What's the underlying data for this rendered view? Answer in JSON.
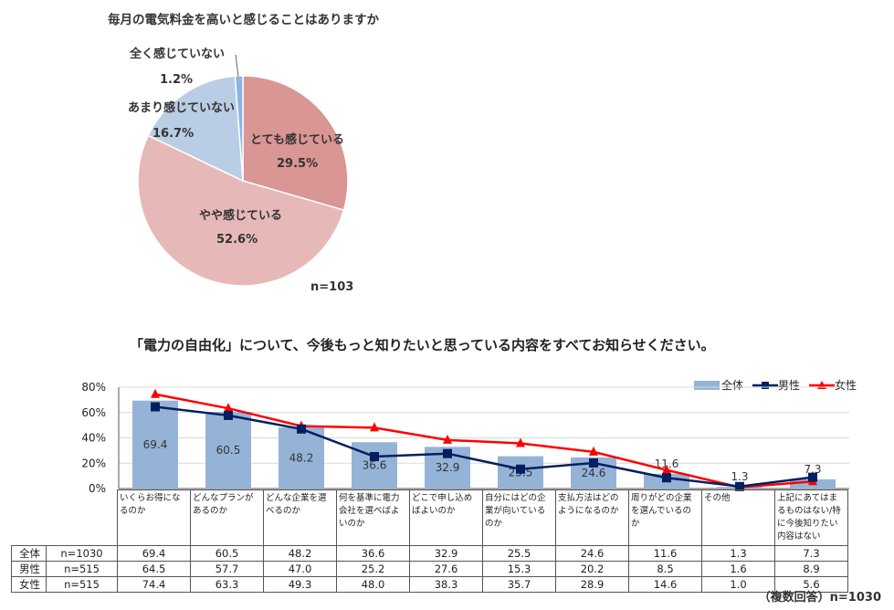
{
  "pie": {
    "title": "毎月の電気料金を高いと感じることはありますか",
    "n_label": "n=103",
    "slices": [
      {
        "label": "とても感じている",
        "value": 29.5,
        "value_label": "29.5%",
        "color": "#d99694"
      },
      {
        "label": "やや感じている",
        "value": 52.6,
        "value_label": "52.6%",
        "color": "#e6b9b8"
      },
      {
        "label": "あまり感じていない",
        "value": 16.7,
        "value_label": "16.7%",
        "color": "#b9cde5"
      },
      {
        "label": "全く感じていない",
        "value": 1.2,
        "value_label": "1.2%",
        "color": "#8eb4e3"
      }
    ]
  },
  "combo": {
    "title": "「電力の自由化」について、今後もっと知りたいと思っている内容をすべてお知らせください。",
    "footnote": "（複数回答）n=1030",
    "legend": [
      "全体",
      "男性",
      "女性"
    ],
    "y_ticks": [
      "80%",
      "60%",
      "40%",
      "20%",
      "0%"
    ],
    "row_labels": [
      {
        "name": "全体",
        "n": "n=1030"
      },
      {
        "name": "男性",
        "n": "n=515"
      },
      {
        "name": "女性",
        "n": "n=515"
      }
    ],
    "categories": [
      "いくらお得になるのか",
      "どんなプランがあるのか",
      "どんな企業を選べるのか",
      "何を基準に電力会社を選べばよいのか",
      "どこで申し込めばよいのか",
      "自分にはどの企業が向いているのか",
      "支払方法はどのようになるのか",
      "周りがどの企業を選んでいるのか",
      "その他",
      "上記にあてはまるものはない/特に今後知りたい内容はない"
    ],
    "table": [
      [
        "69.4",
        "60.5",
        "48.2",
        "36.6",
        "32.9",
        "25.5",
        "24.6",
        "11.6",
        "1.3",
        "7.3"
      ],
      [
        "64.5",
        "57.7",
        "47.0",
        "25.2",
        "27.6",
        "15.3",
        "20.2",
        "8.5",
        "1.6",
        "8.9"
      ],
      [
        "74.4",
        "63.3",
        "49.3",
        "48.0",
        "38.3",
        "35.7",
        "28.9",
        "14.6",
        "1.0",
        "5.6"
      ]
    ]
  },
  "chart_data": [
    {
      "type": "pie",
      "title": "毎月の電気料金を高いと感じることはありますか",
      "categories": [
        "とても感じている",
        "やや感じている",
        "あまり感じていない",
        "全く感じていない"
      ],
      "values": [
        29.5,
        52.6,
        16.7,
        1.2
      ],
      "annotation": "n=103"
    },
    {
      "type": "bar",
      "title": "「電力の自由化」について、今後もっと知りたいと思っている内容をすべてお知らせください。",
      "categories": [
        "いくらお得になるのか",
        "どんなプランがあるのか",
        "どんな企業を選べるのか",
        "何を基準に電力会社を選べばよいのか",
        "どこで申し込めばよいのか",
        "自分にはどの企業が向いているのか",
        "支払方法はどのようになるのか",
        "周りがどの企業を選んでいるのか",
        "その他",
        "上記にあてはまるものはない/特に今後知りたい内容はない"
      ],
      "series": [
        {
          "name": "全体",
          "kind": "bar",
          "color": "#95b3d7",
          "values": [
            69.4,
            60.5,
            48.2,
            36.6,
            32.9,
            25.5,
            24.6,
            11.6,
            1.3,
            7.3
          ]
        },
        {
          "name": "男性",
          "kind": "line",
          "color": "#002060",
          "values": [
            64.5,
            57.7,
            47.0,
            25.2,
            27.6,
            15.3,
            20.2,
            8.5,
            1.6,
            8.9
          ]
        },
        {
          "name": "女性",
          "kind": "line",
          "color": "#ff0000",
          "values": [
            74.4,
            63.3,
            49.3,
            48.0,
            38.3,
            35.7,
            28.9,
            14.6,
            1.0,
            5.6
          ]
        }
      ],
      "ylim": [
        0,
        80
      ],
      "ylabel": "",
      "legend": "top-right",
      "annotation": "（複数回答）n=1030"
    }
  ]
}
